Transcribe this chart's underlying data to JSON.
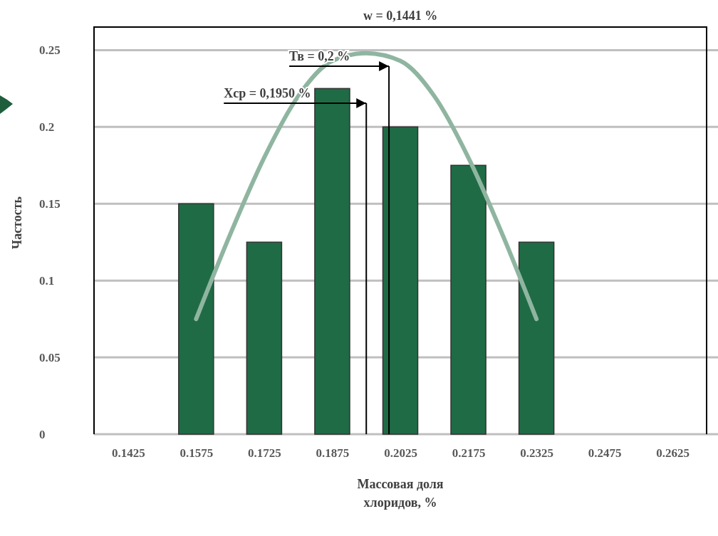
{
  "chart_data": {
    "type": "bar",
    "xlabel": "Массовая доля хлоридов, %",
    "ylabel": "Частость",
    "x": [
      0.1425,
      0.1575,
      0.1725,
      0.1875,
      0.2025,
      0.2175,
      0.2325,
      0.2475,
      0.2625
    ],
    "xlim": [
      0.135,
      0.27
    ],
    "xticks": [
      0.1425,
      0.1575,
      0.1725,
      0.1875,
      0.2025,
      0.2175,
      0.2325,
      0.2475,
      0.2625
    ],
    "ylim": [
      0,
      0.265
    ],
    "yticks": [
      0,
      0.05,
      0.1,
      0.15,
      0.2,
      0.25
    ],
    "grid": "y",
    "series": [
      {
        "color": "#1f6b45",
        "values": [
          0,
          0.15,
          0.125,
          0.225,
          0.2,
          0.175,
          0.125,
          0,
          0
        ]
      },
      {
        "type": "line",
        "color": "#8fb5a0",
        "x": [
          0.1575,
          0.165,
          0.1725,
          0.18,
          0.1875,
          0.195,
          0.2025,
          0.21,
          0.2175,
          0.225,
          0.2325
        ],
        "values": [
          0.075,
          0.13,
          0.18,
          0.22,
          0.243,
          0.248,
          0.243,
          0.22,
          0.18,
          0.13,
          0.075
        ]
      }
    ],
    "ref_lines": [
      {
        "axis": "x",
        "value": 0.195,
        "label": "Хср = 0,1950 %",
        "color": "#000000"
      },
      {
        "axis": "x",
        "value": 0.2,
        "label": "Тв = 0,2 %",
        "color": "#000000"
      }
    ],
    "annotations": [
      "w = 0,1441 %"
    ]
  }
}
